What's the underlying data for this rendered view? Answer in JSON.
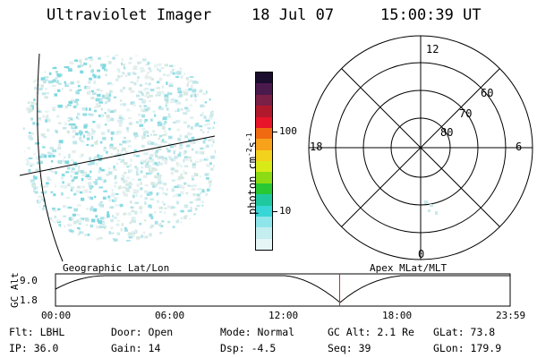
{
  "header": {
    "title": "Ultraviolet Imager",
    "date": "18 Jul 07",
    "time": "15:00:39 UT"
  },
  "colorbar": {
    "unit_label": "photon cm",
    "unit_sup1": "-2",
    "unit_mid": "s",
    "unit_sup2": "-1",
    "ticks": [
      "100",
      "10"
    ],
    "colors": [
      "#1a0d2e",
      "#4b1a4d",
      "#7a1f45",
      "#b0182c",
      "#e8142a",
      "#f06a12",
      "#f7a21a",
      "#f2d21c",
      "#d8ea18",
      "#8bdc14",
      "#28c834",
      "#20c8a0",
      "#38d6d6",
      "#8ee6ea",
      "#c4eef0",
      "#e6f6f6"
    ]
  },
  "panels": {
    "left_label": "Geographic Lat/Lon",
    "right_label": "Apex MLat/MLT"
  },
  "polar": {
    "mlt": {
      "top": "12",
      "bottom": "0",
      "left": "18",
      "right": "6"
    },
    "mlat": [
      "60",
      "70",
      "80"
    ]
  },
  "altitude_plot": {
    "ylabel": "GC Alt",
    "ymax": "9.0",
    "ymin": "1.8",
    "xticks": [
      "00:00",
      "06:00",
      "12:00",
      "18:00",
      "23:59"
    ],
    "current_time_fraction": 0.625,
    "marker_color": "#c03030"
  },
  "info": {
    "row1": {
      "flt": "Flt: LBHL",
      "door": "Door: Open",
      "mode": "Mode: Normal",
      "gcalt": "GC Alt: 2.1 Re",
      "glat": "GLat:  73.8"
    },
    "row2": {
      "ip": "IP: 36.0",
      "gain": "Gain: 14",
      "dsp": "Dsp:   -4.5",
      "seq": "Seq: 39",
      "glon": "GLon: 179.9"
    }
  }
}
